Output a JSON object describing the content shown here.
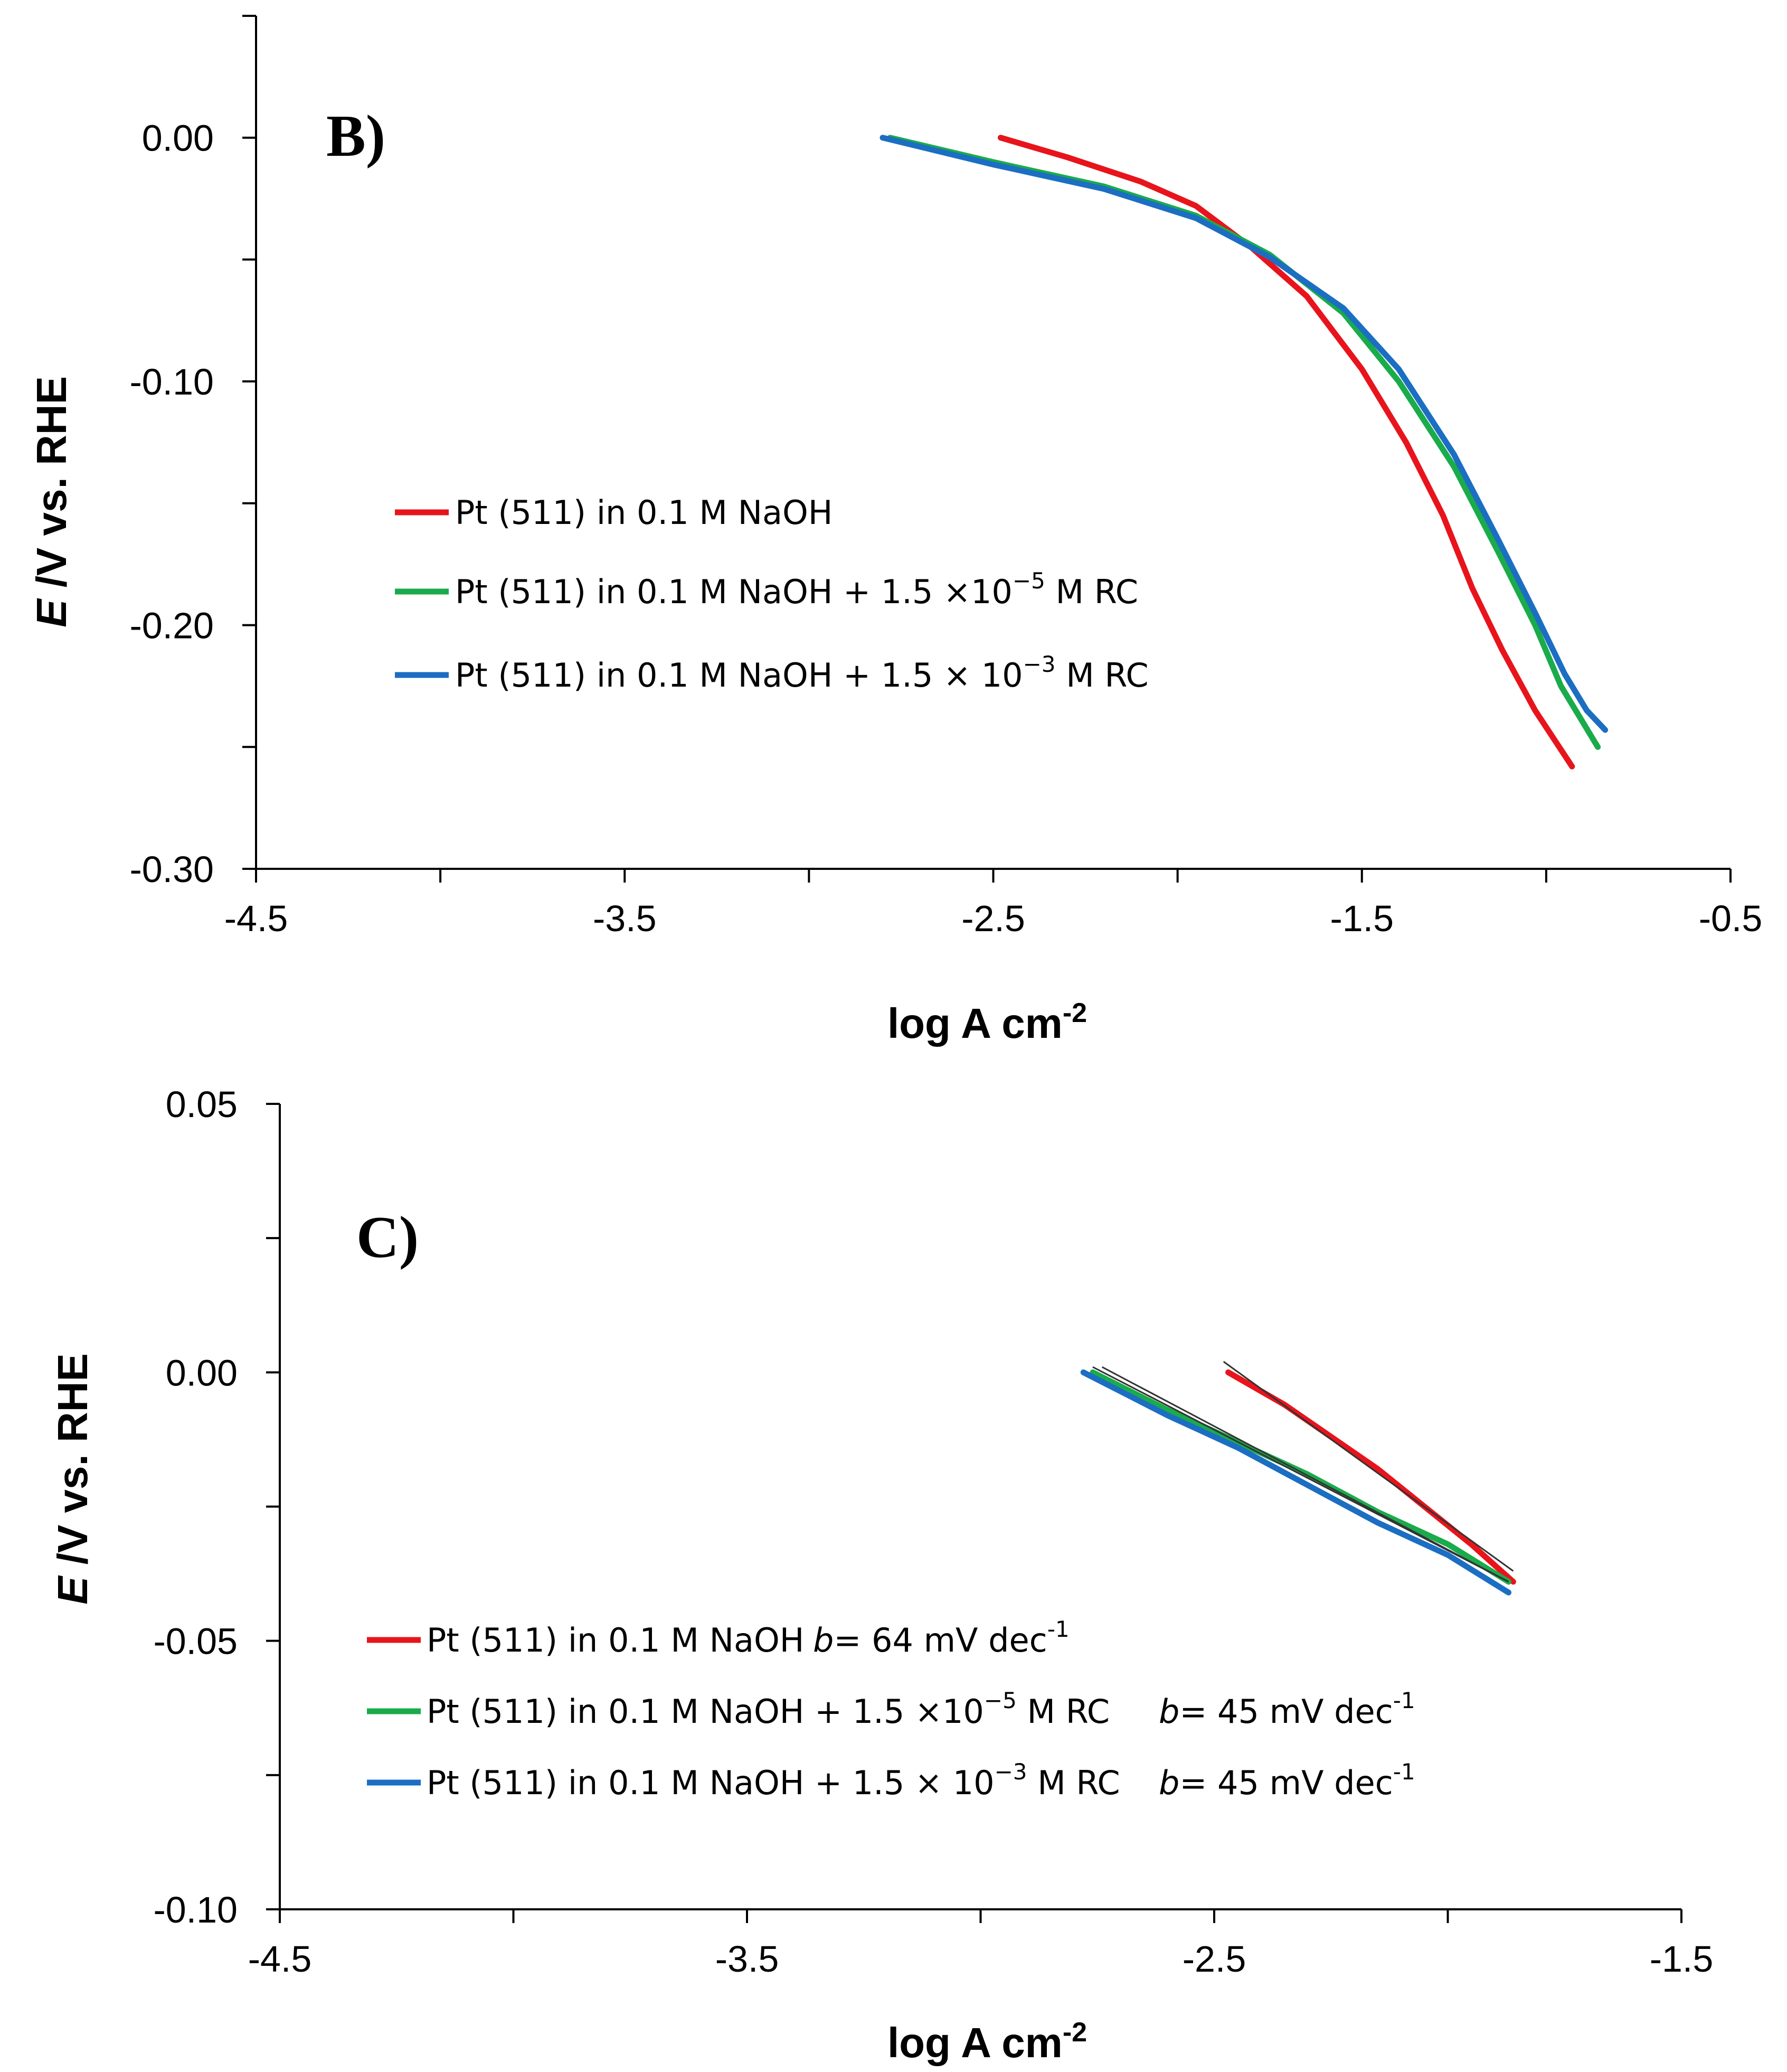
{
  "colors": {
    "red": "#e8141c",
    "green": "#1aab4b",
    "blue": "#1b6ec2",
    "fit": "#333333"
  },
  "chart_data": [
    {
      "type": "line",
      "panel_label": "B)",
      "xlabel": "log A cm",
      "xlabel_sup": "-2",
      "ylabel_italic": "E",
      "ylabel_rest": " /V vs. RHE",
      "xlim": [
        -4.5,
        -0.5
      ],
      "ylim": [
        -0.3,
        0.05
      ],
      "x_ticks": [
        -4.5,
        -3.5,
        -2.5,
        -1.5,
        -0.5
      ],
      "x_tick_labels": [
        "-4.5",
        "-3.5",
        "-2.5",
        "-1.5",
        "-0.5"
      ],
      "x_minor_ticks": [
        -4.0,
        -3.0,
        -2.0,
        -1.0
      ],
      "y_ticks": [
        0.0,
        -0.1,
        -0.2,
        -0.3
      ],
      "y_tick_labels": [
        "0.00",
        "-0.10",
        "-0.20",
        "-0.30"
      ],
      "y_minor_ticks": [
        0.05,
        -0.05,
        -0.15,
        -0.25
      ],
      "series": [
        {
          "name": "Pt (511) in 0.1 M NaOH",
          "legend_prefix": "Pt (511) in 0.1 M NaOH",
          "legend_sup": "",
          "legend_suffix": "",
          "color": "#e8141c",
          "x": [
            -2.48,
            -2.3,
            -2.1,
            -1.95,
            -1.8,
            -1.65,
            -1.5,
            -1.38,
            -1.28,
            -1.2,
            -1.12,
            -1.03,
            -0.93
          ],
          "y": [
            0.0,
            -0.008,
            -0.018,
            -0.028,
            -0.045,
            -0.065,
            -0.095,
            -0.125,
            -0.155,
            -0.185,
            -0.21,
            -0.235,
            -0.258
          ]
        },
        {
          "name": "Pt (511) in 0.1 M NaOH + 1.5 ×10⁻⁵ M RC",
          "legend_prefix": "Pt (511) in 0.1 M NaOH + 1.5 ×10",
          "legend_sup": "−5",
          "legend_suffix": " M  RC",
          "color": "#1aab4b",
          "x": [
            -2.78,
            -2.5,
            -2.2,
            -1.95,
            -1.75,
            -1.55,
            -1.4,
            -1.25,
            -1.13,
            -1.03,
            -0.96,
            -0.9,
            -0.86
          ],
          "y": [
            0.0,
            -0.01,
            -0.02,
            -0.032,
            -0.048,
            -0.072,
            -0.1,
            -0.135,
            -0.17,
            -0.2,
            -0.225,
            -0.24,
            -0.25
          ]
        },
        {
          "name": "Pt (511) in 0.1 M NaOH + 1.5 × 10⁻³ M RC",
          "legend_prefix": "Pt (511) in 0.1 M NaOH + 1.5 × 10",
          "legend_sup": "−3",
          "legend_suffix": " M RC",
          "color": "#1b6ec2",
          "x": [
            -2.8,
            -2.5,
            -2.2,
            -1.95,
            -1.75,
            -1.55,
            -1.4,
            -1.25,
            -1.13,
            -1.03,
            -0.95,
            -0.89,
            -0.84
          ],
          "y": [
            0.0,
            -0.011,
            -0.021,
            -0.033,
            -0.049,
            -0.07,
            -0.095,
            -0.13,
            -0.165,
            -0.195,
            -0.22,
            -0.235,
            -0.243
          ]
        }
      ]
    },
    {
      "type": "line",
      "panel_label": "C)",
      "xlabel": "log A cm",
      "xlabel_sup": "-2",
      "ylabel_italic": "E",
      "ylabel_rest": " /V vs. RHE",
      "xlim": [
        -4.5,
        -1.5
      ],
      "ylim": [
        -0.1,
        0.05
      ],
      "x_ticks": [
        -4.5,
        -3.5,
        -2.5,
        -1.5
      ],
      "x_tick_labels": [
        "-4.5",
        "-3.5",
        "-2.5",
        "-1.5"
      ],
      "x_minor_ticks": [
        -4.0,
        -3.0,
        -2.0
      ],
      "y_ticks": [
        0.05,
        0.0,
        -0.05,
        -0.1
      ],
      "y_tick_labels": [
        "0.05",
        "0.00",
        "-0.05",
        "-0.10"
      ],
      "y_minor_ticks": [
        0.025,
        -0.025,
        -0.075
      ],
      "series": [
        {
          "name": "Pt (511) in 0.1 M NaOH",
          "legend_prefix": "Pt (511) in 0.1 M NaOH",
          "legend_sup": "",
          "legend_suffix": "",
          "slope_label": "b",
          "slope_value": "= 64 mV dec",
          "slope_sup": "-1",
          "color": "#e8141c",
          "x": [
            -2.47,
            -2.35,
            -2.25,
            -2.15,
            -2.05,
            -1.95,
            -1.86
          ],
          "y": [
            0.0,
            -0.006,
            -0.012,
            -0.018,
            -0.025,
            -0.032,
            -0.039
          ],
          "fit": {
            "x": [
              -2.48,
              -1.86
            ],
            "y": [
              0.002,
              -0.037
            ]
          }
        },
        {
          "name": "Pt (511) in 0.1 M NaOH + 1.5 ×10⁻⁵ M RC",
          "legend_prefix": "Pt (511) in 0.1 M NaOH + 1.5 ×10",
          "legend_sup": "−5",
          "legend_suffix": " M  RC",
          "slope_label": "b",
          "slope_value": "= 45 mV dec",
          "slope_sup": "-1",
          "color": "#1aab4b",
          "x": [
            -2.76,
            -2.6,
            -2.45,
            -2.3,
            -2.15,
            -2.0,
            -1.87
          ],
          "y": [
            0.0,
            -0.007,
            -0.013,
            -0.019,
            -0.026,
            -0.032,
            -0.039
          ],
          "fit": {
            "x": [
              -2.76,
              -1.87
            ],
            "y": [
              0.001,
              -0.039
            ]
          }
        },
        {
          "name": "Pt (511) in 0.1 M NaOH + 1.5 × 10⁻³ M RC",
          "legend_prefix": "Pt (511) in 0.1 M NaOH + 1.5 × 10",
          "legend_sup": "−3",
          "legend_suffix": " M RC",
          "slope_label": "b",
          "slope_value": "= 45 mV dec",
          "slope_sup": "-1",
          "color": "#1b6ec2",
          "x": [
            -2.78,
            -2.6,
            -2.45,
            -2.3,
            -2.15,
            -2.0,
            -1.87
          ],
          "y": [
            0.0,
            -0.008,
            -0.014,
            -0.021,
            -0.028,
            -0.034,
            -0.041
          ],
          "fit": {
            "x": [
              -2.74,
              -1.87
            ],
            "y": [
              0.001,
              -0.039
            ]
          }
        }
      ]
    }
  ]
}
